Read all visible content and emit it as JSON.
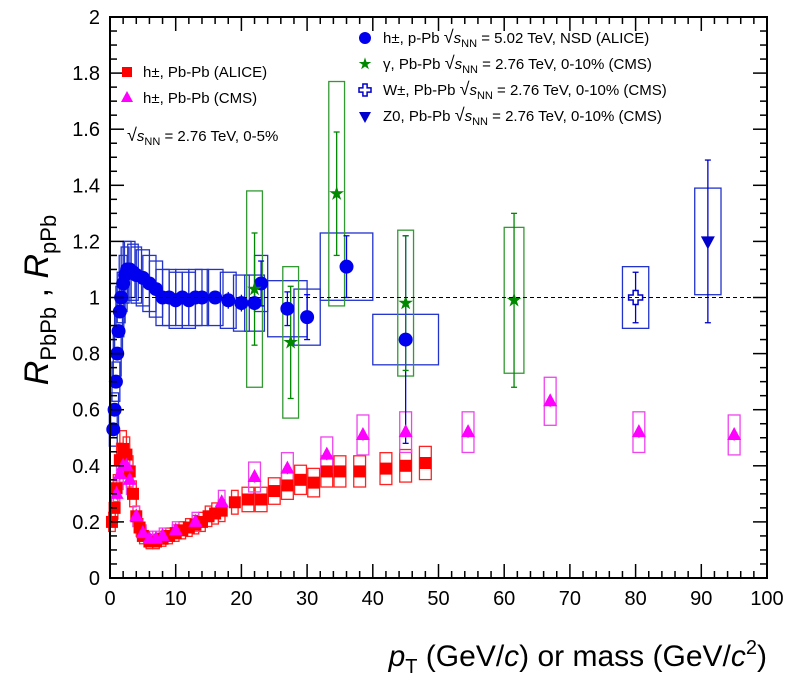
{
  "chart_data": {
    "type": "scatter",
    "title": "",
    "xlabel": {
      "main": "p",
      "sub": "T",
      "rest": " (GeV/",
      "c": "c",
      "rest2": ") or mass (GeV/",
      "c2": "c",
      "sup": "2",
      "end": ")"
    },
    "ylabel": {
      "r1": "R",
      "s1": "PbPb",
      "sep": " , ",
      "r2": "R",
      "s2": "pPb"
    },
    "xlim": [
      0,
      100
    ],
    "ylim": [
      0,
      2
    ],
    "xticks": [
      "0",
      "10",
      "20",
      "30",
      "40",
      "50",
      "60",
      "70",
      "80",
      "90",
      "100"
    ],
    "yticks": [
      "0",
      "0.2",
      "0.4",
      "0.6",
      "0.8",
      "1",
      "1.2",
      "1.4",
      "1.6",
      "1.8",
      "2"
    ],
    "reference_line": 1,
    "legend_left": {
      "entries": [
        {
          "label": "h±, Pb-Pb (ALICE)",
          "color": "#ff0000",
          "marker": "square"
        },
        {
          "label": "h±, Pb-Pb (CMS)",
          "color": "#ff00ff",
          "marker": "triangle-up"
        }
      ],
      "energy": {
        "sqrt": "√",
        "s": "s",
        "sub": "NN",
        "rest": " = 2.76 TeV, 0-5%"
      }
    },
    "legend_right": [
      {
        "label": "h±, p-Pb ",
        "s": "s",
        "sub": "NN",
        "rest": " = 5.02 TeV, NSD (ALICE)",
        "color": "#0000ee",
        "marker": "circle"
      },
      {
        "label": "γ, Pb-Pb ",
        "s": "s",
        "sub": "NN",
        "rest": " = 2.76 TeV, 0-10% (CMS)",
        "color": "#008800",
        "marker": "star"
      },
      {
        "label": "W±, Pb-Pb ",
        "s": "s",
        "sub": "NN",
        "rest": " = 2.76 TeV, 0-10% (CMS)",
        "color": "#0000cc",
        "marker": "open-cross"
      },
      {
        "label": "Z0, Pb-Pb ",
        "s": "s",
        "sub": "NN",
        "rest": " = 2.76 TeV, 0-10% (CMS)",
        "color": "#0000cc",
        "marker": "triangle-down"
      }
    ],
    "series": [
      {
        "name": "h± p-Pb ALICE",
        "color": "#0000ee",
        "marker": "circle",
        "box_color": "#2233cc",
        "points": [
          [
            0.5,
            0.53,
            0.02,
            0.06
          ],
          [
            0.7,
            0.6,
            0.02,
            0.06
          ],
          [
            0.9,
            0.7,
            0.02,
            0.07
          ],
          [
            1.1,
            0.8,
            0.02,
            0.08
          ],
          [
            1.3,
            0.88,
            0.02,
            0.08
          ],
          [
            1.5,
            0.95,
            0.02,
            0.09
          ],
          [
            1.7,
            1.0,
            0.02,
            0.09
          ],
          [
            2,
            1.05,
            0.02,
            0.1
          ],
          [
            2.3,
            1.08,
            0.02,
            0.1
          ],
          [
            2.6,
            1.1,
            0.02,
            0.1
          ],
          [
            3,
            1.1,
            0.02,
            0.1
          ],
          [
            3.5,
            1.09,
            0.02,
            0.1
          ],
          [
            4,
            1.08,
            0.02,
            0.1
          ],
          [
            5,
            1.07,
            0.02,
            0.1
          ],
          [
            6,
            1.05,
            0.02,
            0.1
          ],
          [
            7,
            1.03,
            0.02,
            0.1
          ],
          [
            8,
            1.0,
            0.02,
            0.1
          ],
          [
            9,
            1.0,
            0.02,
            0.1
          ],
          [
            10,
            0.99,
            0.02,
            0.1
          ],
          [
            11,
            1.0,
            0.02,
            0.1
          ],
          [
            12,
            0.99,
            0.02,
            0.1
          ],
          [
            13,
            1.0,
            0.02,
            0.1
          ],
          [
            14,
            1.0,
            0.02,
            0.1
          ],
          [
            16,
            1.0,
            0.02,
            0.1
          ],
          [
            18,
            0.99,
            0.03,
            0.1
          ],
          [
            20,
            0.98,
            0.03,
            0.1
          ],
          [
            22,
            0.98,
            0.03,
            0.1
          ],
          [
            23,
            1.05,
            0.08,
            0.1
          ],
          [
            27,
            0.96,
            0.06,
            0.1
          ],
          [
            30,
            0.93,
            0.08,
            0.1
          ],
          [
            36,
            1.11,
            0.11,
            0.12
          ],
          [
            45,
            0.85,
            0.37,
            0.09
          ]
        ],
        "box_halfwidth": [
          0.6,
          0.6,
          0.6,
          0.6,
          0.6,
          0.6,
          0.6,
          0.6,
          0.6,
          0.6,
          0.8,
          0.8,
          0.8,
          1,
          1,
          1,
          1,
          1,
          1,
          1,
          1,
          1,
          1,
          1.2,
          1.2,
          1.2,
          1.5,
          1,
          3,
          2,
          4,
          5
        ]
      },
      {
        "name": "h± Pb-Pb ALICE",
        "color": "#ff0000",
        "marker": "square",
        "box_color": "#ff2222",
        "points": [
          [
            0.3,
            0.2
          ],
          [
            0.7,
            0.25
          ],
          [
            1,
            0.32
          ],
          [
            1.5,
            0.42
          ],
          [
            2,
            0.46
          ],
          [
            2.5,
            0.44
          ],
          [
            3,
            0.38
          ],
          [
            3.5,
            0.3
          ],
          [
            4,
            0.22
          ],
          [
            4.5,
            0.18
          ],
          [
            5,
            0.15
          ],
          [
            6,
            0.13
          ],
          [
            7,
            0.13
          ],
          [
            8,
            0.14
          ],
          [
            9,
            0.15
          ],
          [
            10,
            0.16
          ],
          [
            11,
            0.17
          ],
          [
            12,
            0.18
          ],
          [
            13,
            0.19
          ],
          [
            14,
            0.2
          ],
          [
            15,
            0.22
          ],
          [
            16,
            0.23
          ],
          [
            17,
            0.24
          ],
          [
            19,
            0.27
          ],
          [
            21,
            0.28
          ],
          [
            23,
            0.28
          ],
          [
            25,
            0.31
          ],
          [
            27,
            0.33
          ],
          [
            29,
            0.35
          ],
          [
            31,
            0.34
          ],
          [
            33,
            0.38
          ],
          [
            35,
            0.38
          ],
          [
            38,
            0.38
          ],
          [
            42,
            0.39
          ],
          [
            45,
            0.4
          ],
          [
            48,
            0.41
          ]
        ]
      },
      {
        "name": "h± Pb-Pb CMS",
        "color": "#ff00ff",
        "marker": "triangle-up",
        "box_color": "#ee44ee",
        "points": [
          [
            1,
            0.3
          ],
          [
            1.5,
            0.37
          ],
          [
            2,
            0.4
          ],
          [
            2.5,
            0.4
          ],
          [
            3,
            0.35
          ],
          [
            4,
            0.22
          ],
          [
            5,
            0.16
          ],
          [
            6,
            0.14
          ],
          [
            7,
            0.14
          ],
          [
            8,
            0.15
          ],
          [
            10,
            0.17
          ],
          [
            13,
            0.2
          ],
          [
            17,
            0.27
          ],
          [
            22,
            0.36
          ],
          [
            27,
            0.39
          ],
          [
            33,
            0.44
          ],
          [
            38.5,
            0.51
          ],
          [
            45,
            0.52
          ],
          [
            54.5,
            0.52
          ],
          [
            67,
            0.63
          ],
          [
            80.5,
            0.52
          ],
          [
            95,
            0.51
          ]
        ]
      },
      {
        "name": "γ Pb-Pb CMS",
        "color": "#008800",
        "marker": "star",
        "box_color": "#339933",
        "points": [
          [
            22,
            1.03,
            0.2,
            0.35,
            1.2
          ],
          [
            27.5,
            0.84,
            0.2,
            0.27,
            1.2
          ],
          [
            34.5,
            1.37,
            0.22,
            0.4,
            1.2
          ],
          [
            45,
            0.98,
            0.24,
            0.26,
            1.2
          ],
          [
            61.5,
            0.99,
            0.31,
            0.26,
            1.5
          ]
        ]
      },
      {
        "name": "W± Pb-Pb CMS",
        "color": "#0000cc",
        "marker": "open-cross",
        "box_color": "#2233cc",
        "points": [
          [
            80,
            1.0,
            0.09,
            0.11,
            2
          ]
        ]
      },
      {
        "name": "Z0 Pb-Pb CMS",
        "color": "#0000cc",
        "marker": "triangle-down",
        "box_color": "#2233cc",
        "points": [
          [
            91,
            1.2,
            0.29,
            0.19,
            2
          ]
        ]
      }
    ]
  }
}
